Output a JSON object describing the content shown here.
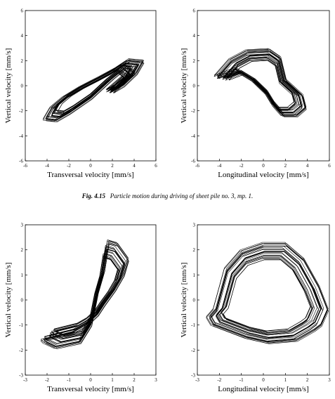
{
  "caption": {
    "label": "Fig. 4.15",
    "text": "Particle motion during driving of sheet pile no. 3, mp. 1."
  },
  "chart_data": [
    {
      "type": "line",
      "xlabel": "Transversal velocity [mm/s]",
      "ylabel": "Vertical velocity [mm/s]",
      "xlim": [
        -6,
        6
      ],
      "ylim": [
        -6,
        6
      ],
      "xticks": [
        -6,
        -4,
        -2,
        0,
        2,
        4,
        6
      ],
      "yticks": [
        -6,
        -4,
        -2,
        0,
        2,
        4,
        6
      ],
      "grid": false,
      "series": [
        {
          "x": [
            -4.2,
            -3.6,
            -2.5,
            -1.0,
            0.8,
            2.3,
            3.5,
            4.8,
            4.2,
            3.0,
            2.0,
            3.2,
            4.0,
            3.3,
            2.0,
            0.0,
            -2.0,
            -3.2,
            -4.2
          ],
          "y": [
            -2.7,
            -1.8,
            -1.0,
            -0.2,
            0.6,
            1.3,
            2.0,
            1.9,
            1.0,
            0.0,
            -0.5,
            0.4,
            1.0,
            1.5,
            0.6,
            -1.0,
            -2.2,
            -2.8,
            -2.7
          ]
        }
      ]
    },
    {
      "type": "line",
      "xlabel": "Longitudinal velocity [mm/s]",
      "ylabel": "Vertical velocity [mm/s]",
      "xlim": [
        -6,
        6
      ],
      "ylim": [
        -6,
        6
      ],
      "xticks": [
        -6,
        -4,
        -2,
        0,
        2,
        4,
        6
      ],
      "yticks": [
        -6,
        -4,
        -2,
        0,
        2,
        4,
        6
      ],
      "grid": false,
      "series": [
        {
          "x": [
            -4.3,
            -3.0,
            -1.5,
            0.5,
            1.5,
            2.0,
            3.5,
            3.8,
            3.0,
            1.8,
            1.0,
            0.3,
            -1.0,
            -2.5,
            -4.3
          ],
          "y": [
            0.7,
            2.0,
            2.7,
            2.8,
            2.2,
            0.4,
            -0.8,
            -1.8,
            -2.4,
            -2.4,
            -1.6,
            -0.6,
            0.5,
            1.3,
            0.7
          ]
        }
      ]
    },
    {
      "type": "line",
      "xlabel": "Transversal velocity [mm/s]",
      "ylabel": "Vertical velocity [mm/s]",
      "xlim": [
        -3,
        3
      ],
      "ylim": [
        -3,
        3
      ],
      "xticks": [
        -3,
        -2,
        -1,
        0,
        1,
        2,
        3
      ],
      "yticks": [
        -3,
        -2,
        -1,
        0,
        1,
        2,
        3
      ],
      "grid": false,
      "series": [
        {
          "x": [
            -2.1,
            -1.6,
            -0.5,
            0.0,
            0.3,
            0.6,
            0.8,
            1.2,
            1.7,
            1.5,
            1.1,
            0.6,
            0.3,
            -0.2,
            -0.8,
            -2.2,
            -2.1
          ],
          "y": [
            -1.7,
            -1.9,
            -1.7,
            -1.0,
            0.3,
            1.2,
            2.3,
            2.2,
            1.6,
            1.0,
            0.4,
            -0.2,
            -0.6,
            -1.0,
            -1.3,
            -1.6,
            -1.7
          ]
        }
      ]
    },
    {
      "type": "line",
      "xlabel": "Longitudinal velocity [mm/s]",
      "ylabel": "Vertical velocity [mm/s]",
      "xlim": [
        -3,
        3
      ],
      "ylim": [
        -3,
        3
      ],
      "xticks": [
        -3,
        -2,
        -1,
        0,
        1,
        2,
        3
      ],
      "yticks": [
        -3,
        -2,
        -1,
        0,
        1,
        2,
        3
      ],
      "grid": false,
      "series": [
        {
          "x": [
            -2.2,
            -1.7,
            -1.0,
            0.0,
            1.0,
            1.8,
            2.5,
            2.9,
            2.6,
            2.3,
            1.5,
            0.2,
            -0.8,
            -2.3,
            -2.5,
            -2.2
          ],
          "y": [
            -0.4,
            1.2,
            1.9,
            2.2,
            2.2,
            1.6,
            0.5,
            -0.4,
            -1.0,
            -1.2,
            -1.6,
            -1.7,
            -1.5,
            -1.0,
            -0.7,
            -0.4
          ]
        }
      ]
    }
  ]
}
